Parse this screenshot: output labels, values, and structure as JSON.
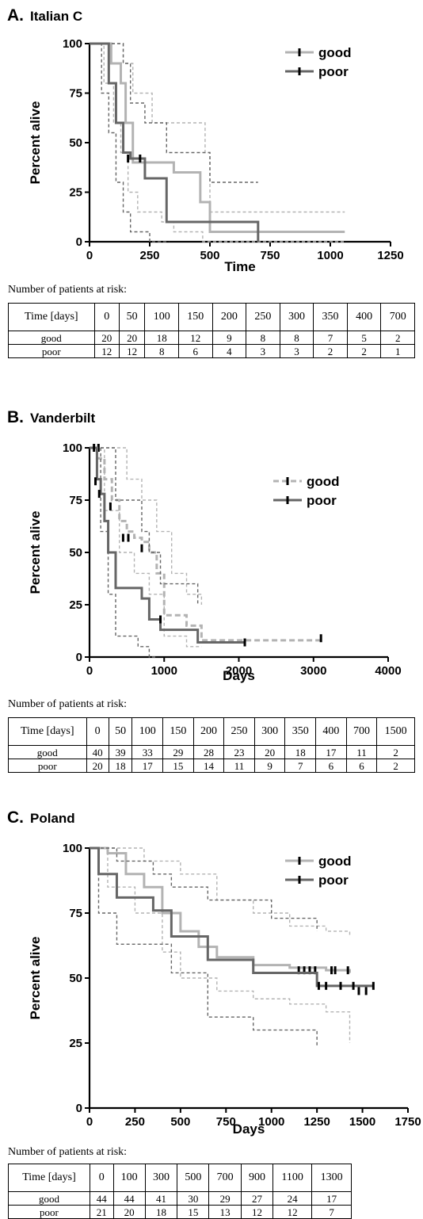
{
  "chart_data": [
    {
      "type": "line",
      "panel_letter": "A.",
      "title": "Italian C",
      "xlabel": "Time",
      "ylabel": "Percent alive",
      "xlim": [
        0,
        1250
      ],
      "ylim": [
        0,
        100
      ],
      "xticks": [
        0,
        250,
        500,
        750,
        1000,
        1250
      ],
      "yticks": [
        0,
        25,
        50,
        75,
        100
      ],
      "legend_position": "top-right",
      "colors": {
        "good": "#b3b3b3",
        "poor": "#666666"
      },
      "series": [
        {
          "name": "good",
          "line": "solid",
          "x": [
            0,
            50,
            90,
            130,
            150,
            180,
            300,
            350,
            460,
            500,
            1060
          ],
          "y": [
            100,
            100,
            90,
            80,
            60,
            40,
            40,
            35,
            20,
            5,
            5
          ],
          "censored": [],
          "ci_lower_x": [
            0,
            60,
            100,
            130,
            160,
            200,
            300,
            350,
            470,
            1060
          ],
          "ci_lower_y": [
            100,
            80,
            60,
            45,
            25,
            15,
            10,
            5,
            0,
            0
          ],
          "ci_upper_x": [
            0,
            80,
            110,
            140,
            180,
            260,
            360,
            480,
            500,
            1060
          ],
          "ci_upper_y": [
            100,
            100,
            100,
            90,
            75,
            60,
            60,
            45,
            15,
            15
          ]
        },
        {
          "name": "poor",
          "line": "solid",
          "x": [
            0,
            60,
            80,
            110,
            140,
            170,
            230,
            320,
            700
          ],
          "y": [
            100,
            100,
            80,
            60,
            45,
            42,
            32,
            10,
            0
          ],
          "censored": [
            {
              "x": 160,
              "y": 42
            },
            {
              "x": 210,
              "y": 42
            }
          ],
          "ci_lower_x": [
            0,
            50,
            80,
            110,
            140,
            170,
            250,
            330
          ],
          "ci_lower_y": [
            100,
            75,
            55,
            30,
            15,
            5,
            0,
            0
          ],
          "ci_upper_x": [
            0,
            100,
            140,
            170,
            230,
            320,
            500,
            700
          ],
          "ci_upper_y": [
            100,
            100,
            90,
            70,
            60,
            45,
            30,
            30
          ]
        }
      ],
      "risk_table": {
        "caption": "Number of patients at risk:",
        "header_label": "Time [days]",
        "times": [
          "0",
          "50",
          "100",
          "150",
          "200",
          "250",
          "300",
          "350",
          "400",
          "700"
        ],
        "rows": [
          {
            "label": "good",
            "values": [
              "20",
              "20",
              "18",
              "12",
              "9",
              "8",
              "8",
              "7",
              "5",
              "2"
            ]
          },
          {
            "label": "poor",
            "values": [
              "12",
              "12",
              "8",
              "6",
              "4",
              "3",
              "3",
              "2",
              "2",
              "1"
            ]
          }
        ]
      }
    },
    {
      "type": "line",
      "panel_letter": "B.",
      "title": "Vanderbilt",
      "xlabel": "Days",
      "ylabel": "Percent alive",
      "xlim": [
        0,
        4000
      ],
      "ylim": [
        0,
        100
      ],
      "xticks": [
        0,
        1000,
        2000,
        3000,
        4000
      ],
      "yticks": [
        0,
        25,
        50,
        75,
        100
      ],
      "legend_position": "top-right",
      "colors": {
        "good": "#b3b3b3",
        "poor": "#666666"
      },
      "series": [
        {
          "name": "good",
          "line": "dashed",
          "x": [
            0,
            100,
            200,
            300,
            400,
            500,
            600,
            700,
            800,
            900,
            1000,
            1300,
            1500,
            3100
          ],
          "y": [
            100,
            95,
            85,
            75,
            65,
            60,
            57,
            55,
            50,
            40,
            20,
            15,
            8,
            8
          ],
          "censored": [
            {
              "x": 120,
              "y": 100
            },
            {
              "x": 450,
              "y": 57
            },
            {
              "x": 520,
              "y": 57
            },
            {
              "x": 700,
              "y": 52
            },
            {
              "x": 3100,
              "y": 9
            }
          ],
          "ci_lower_x": [
            0,
            200,
            400,
            600,
            800,
            1000,
            1300,
            1500
          ],
          "ci_lower_y": [
            100,
            70,
            50,
            40,
            30,
            10,
            5,
            5
          ],
          "ci_upper_x": [
            0,
            200,
            500,
            700,
            900,
            1100,
            1300,
            1500
          ],
          "ci_upper_y": [
            100,
            100,
            85,
            75,
            60,
            40,
            30,
            25
          ]
        },
        {
          "name": "poor",
          "line": "solid",
          "x": [
            0,
            100,
            150,
            200,
            250,
            350,
            700,
            800,
            950,
            1450,
            2080
          ],
          "y": [
            100,
            85,
            78,
            65,
            50,
            33,
            28,
            18,
            13,
            7,
            7
          ],
          "censored": [
            {
              "x": 60,
              "y": 100
            },
            {
              "x": 80,
              "y": 84
            },
            {
              "x": 130,
              "y": 78
            },
            {
              "x": 280,
              "y": 72
            },
            {
              "x": 950,
              "y": 18
            },
            {
              "x": 2080,
              "y": 7
            }
          ],
          "ci_lower_x": [
            0,
            150,
            250,
            350,
            650,
            800,
            900
          ],
          "ci_lower_y": [
            100,
            60,
            30,
            10,
            5,
            0,
            0
          ],
          "ci_upper_x": [
            0,
            200,
            350,
            700,
            800,
            950,
            1450
          ],
          "ci_upper_y": [
            100,
            100,
            75,
            60,
            50,
            35,
            25
          ]
        }
      ],
      "risk_table": {
        "caption": "Number of patients at risk:",
        "header_label": "Time [days]",
        "times": [
          "0",
          "50",
          "100",
          "150",
          "200",
          "250",
          "300",
          "350",
          "400",
          "700",
          "1500"
        ],
        "rows": [
          {
            "label": "good",
            "values": [
              "40",
              "39",
              "33",
              "29",
              "28",
              "23",
              "20",
              "18",
              "17",
              "11",
              "2"
            ]
          },
          {
            "label": "poor",
            "values": [
              "20",
              "18",
              "17",
              "15",
              "14",
              "11",
              "9",
              "7",
              "6",
              "6",
              "2"
            ]
          }
        ]
      }
    },
    {
      "type": "line",
      "panel_letter": "C.",
      "title": "Poland",
      "xlabel": "Days",
      "ylabel": "Percent alive",
      "xlim": [
        0,
        1750
      ],
      "ylim": [
        0,
        100
      ],
      "xticks": [
        0,
        250,
        500,
        750,
        1000,
        1250,
        1500,
        1750
      ],
      "yticks": [
        0,
        25,
        50,
        75,
        100
      ],
      "legend_position": "top-right",
      "colors": {
        "good": "#b3b3b3",
        "poor": "#666666"
      },
      "series": [
        {
          "name": "good",
          "line": "solid",
          "x": [
            0,
            100,
            200,
            300,
            400,
            500,
            600,
            700,
            900,
            1100,
            1300,
            1430
          ],
          "y": [
            100,
            98,
            90,
            85,
            75,
            68,
            62,
            58,
            55,
            54,
            53,
            52
          ],
          "censored": [
            {
              "x": 1150,
              "y": 53
            },
            {
              "x": 1180,
              "y": 53
            },
            {
              "x": 1210,
              "y": 53
            },
            {
              "x": 1240,
              "y": 53
            },
            {
              "x": 1330,
              "y": 53
            },
            {
              "x": 1350,
              "y": 53
            },
            {
              "x": 1420,
              "y": 53
            }
          ],
          "ci_lower_x": [
            0,
            100,
            250,
            400,
            500,
            700,
            900,
            1100,
            1300,
            1430
          ],
          "ci_lower_y": [
            100,
            85,
            75,
            60,
            50,
            45,
            42,
            40,
            37,
            25
          ],
          "ci_upper_x": [
            0,
            200,
            300,
            500,
            700,
            900,
            1100,
            1300,
            1430
          ],
          "ci_upper_y": [
            100,
            100,
            95,
            90,
            80,
            75,
            70,
            68,
            66
          ]
        },
        {
          "name": "poor",
          "line": "solid",
          "x": [
            0,
            50,
            150,
            350,
            450,
            650,
            900,
            1250,
            1560
          ],
          "y": [
            100,
            90,
            81,
            76,
            66,
            57,
            52,
            47,
            47
          ],
          "censored": [
            {
              "x": 1260,
              "y": 47
            },
            {
              "x": 1300,
              "y": 47
            },
            {
              "x": 1380,
              "y": 47
            },
            {
              "x": 1450,
              "y": 47
            },
            {
              "x": 1480,
              "y": 45
            },
            {
              "x": 1520,
              "y": 45
            },
            {
              "x": 1560,
              "y": 47
            }
          ],
          "ci_lower_x": [
            0,
            50,
            150,
            450,
            650,
            900,
            1250
          ],
          "ci_lower_y": [
            100,
            75,
            63,
            52,
            35,
            30,
            24
          ],
          "ci_upper_x": [
            0,
            150,
            350,
            450,
            650,
            1000,
            1250
          ],
          "ci_upper_y": [
            100,
            95,
            90,
            85,
            80,
            73,
            68
          ]
        }
      ],
      "risk_table": {
        "caption": "Number of patients at risk:",
        "header_label": "Time [days]",
        "times": [
          "0",
          "100",
          "300",
          "500",
          "700",
          "900",
          "1100",
          "1300"
        ],
        "rows": [
          {
            "label": "good",
            "values": [
              "44",
              "44",
              "41",
              "30",
              "29",
              "27",
              "24",
              "17"
            ]
          },
          {
            "label": "poor",
            "values": [
              "21",
              "20",
              "18",
              "15",
              "13",
              "12",
              "12",
              "7"
            ]
          }
        ]
      }
    }
  ]
}
